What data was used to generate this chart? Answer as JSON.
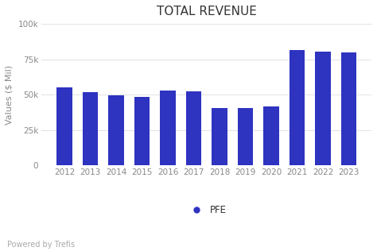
{
  "title": "TOTAL REVENUE",
  "ylabel": "Values ($ Mil)",
  "categories": [
    "2012",
    "2013",
    "2014",
    "2015",
    "2016",
    "2017",
    "2018",
    "2019",
    "2020",
    "2021",
    "2022",
    "2023"
  ],
  "values": [
    55000,
    51800,
    49600,
    48500,
    52800,
    52500,
    40600,
    40500,
    41900,
    81300,
    80500,
    79900
  ],
  "bar_color": "#2e33c0",
  "ylim": [
    0,
    100000
  ],
  "yticks": [
    0,
    25000,
    50000,
    75000,
    100000
  ],
  "ytick_labels": [
    "0",
    "25k",
    "50k",
    "75k",
    "100k"
  ],
  "background_color": "#ffffff",
  "grid_color": "#dddddd",
  "title_fontsize": 11,
  "ylabel_fontsize": 8,
  "tick_fontsize": 7.5,
  "legend_label": "PFE",
  "legend_color": "#2e33c0",
  "footer_text": "Powered by Trefis",
  "footer_fontsize": 7
}
